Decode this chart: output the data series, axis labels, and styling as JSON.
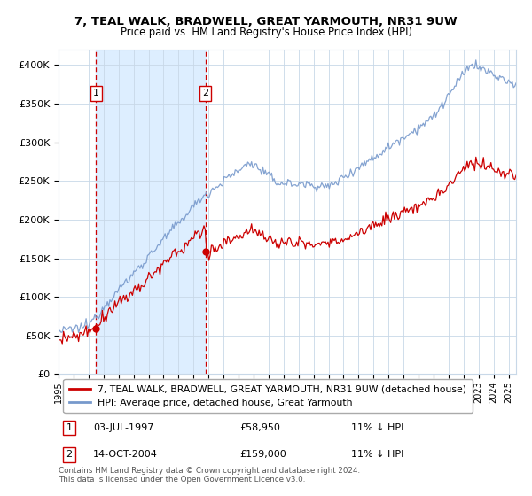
{
  "title": "7, TEAL WALK, BRADWELL, GREAT YARMOUTH, NR31 9UW",
  "subtitle": "Price paid vs. HM Land Registry's House Price Index (HPI)",
  "legend_line1": "7, TEAL WALK, BRADWELL, GREAT YARMOUTH, NR31 9UW (detached house)",
  "legend_line2": "HPI: Average price, detached house, Great Yarmouth",
  "annotation1_date": "03-JUL-1997",
  "annotation1_price": "£58,950",
  "annotation1_hpi": "11% ↓ HPI",
  "annotation1_year": 1997.5,
  "annotation1_value": 58950,
  "annotation2_date": "14-OCT-2004",
  "annotation2_price": "£159,000",
  "annotation2_hpi": "11% ↓ HPI",
  "annotation2_year": 2004.79,
  "annotation2_value": 159000,
  "red_color": "#cc0000",
  "blue_color": "#7799cc",
  "shade_color": "#ddeeff",
  "grid_color": "#c8d8e8",
  "background_color": "#ffffff",
  "footnote": "Contains HM Land Registry data © Crown copyright and database right 2024.\nThis data is licensed under the Open Government Licence v3.0.",
  "ylim_min": 0,
  "ylim_max": 420000,
  "yticks": [
    0,
    50000,
    100000,
    150000,
    200000,
    250000,
    300000,
    350000,
    400000
  ],
  "ytick_labels": [
    "£0",
    "£50K",
    "£100K",
    "£150K",
    "£200K",
    "£250K",
    "£300K",
    "£350K",
    "£400K"
  ]
}
